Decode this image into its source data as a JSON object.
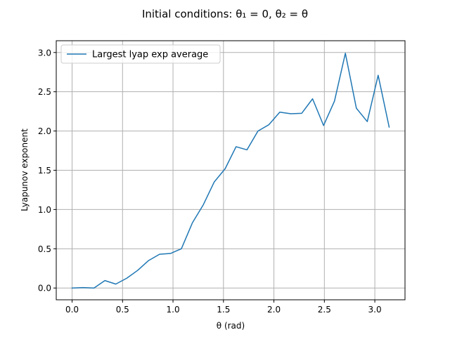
{
  "chart_data": {
    "type": "line",
    "title": "Initial conditions: θ₁ = 0, θ₂ = θ",
    "xlabel": "θ (rad)",
    "ylabel": "Lyapunov exponent",
    "xlim": [
      -0.157,
      3.299
    ],
    "ylim": [
      -0.15,
      3.15
    ],
    "xticks": [
      0.0,
      0.5,
      1.0,
      1.5,
      2.0,
      2.5,
      3.0
    ],
    "xtick_labels": [
      "0.0",
      "0.5",
      "1.0",
      "1.5",
      "2.0",
      "2.5",
      "3.0"
    ],
    "yticks": [
      0.0,
      0.5,
      1.0,
      1.5,
      2.0,
      2.5,
      3.0
    ],
    "ytick_labels": [
      "0.0",
      "0.5",
      "1.0",
      "1.5",
      "2.0",
      "2.5",
      "3.0"
    ],
    "grid": true,
    "legend_position": "top-left",
    "series": [
      {
        "name": "Largest lyap exp average",
        "color": "#1f77b4",
        "x": [
          0.0,
          0.108,
          0.217,
          0.325,
          0.433,
          0.542,
          0.65,
          0.758,
          0.867,
          0.975,
          1.083,
          1.192,
          1.3,
          1.408,
          1.517,
          1.625,
          1.733,
          1.842,
          1.95,
          2.058,
          2.167,
          2.275,
          2.383,
          2.492,
          2.6,
          2.708,
          2.817,
          2.925,
          3.033,
          3.142
        ],
        "y": [
          0.0,
          0.005,
          0.0,
          0.095,
          0.05,
          0.125,
          0.225,
          0.35,
          0.43,
          0.44,
          0.5,
          0.83,
          1.06,
          1.35,
          1.52,
          1.8,
          1.76,
          2.0,
          2.08,
          2.24,
          2.22,
          2.225,
          2.41,
          2.07,
          2.38,
          2.99,
          2.29,
          2.12,
          2.71,
          2.05
        ]
      }
    ]
  }
}
